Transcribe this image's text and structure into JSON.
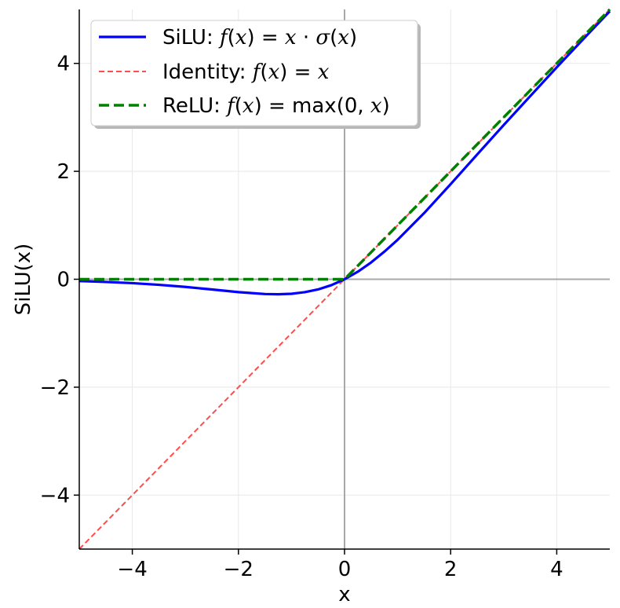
{
  "chart_data": {
    "type": "line",
    "title": "",
    "xlabel": "x",
    "ylabel": "SiLU(x)",
    "xlim": [
      -5,
      5
    ],
    "ylim": [
      -5,
      5
    ],
    "xticks": [
      -4,
      -2,
      0,
      2,
      4
    ],
    "yticks": [
      -4,
      -2,
      0,
      2,
      4
    ],
    "xtick_labels": [
      "−4",
      "−2",
      "0",
      "2",
      "4"
    ],
    "ytick_labels": [
      "−4",
      "−2",
      "0",
      "2",
      "4"
    ],
    "grid": true,
    "legend_position": "top-left",
    "series": [
      {
        "name": "SiLU: f(x) = x · σ(x)",
        "label_parts": [
          "SiLU: ",
          "f",
          "(",
          "x",
          ") = ",
          "x",
          " · ",
          "σ",
          "(",
          "x",
          ")"
        ],
        "color": "#0000ff",
        "style": "solid",
        "x": [
          -5,
          -4.5,
          -4,
          -3.5,
          -3,
          -2.5,
          -2,
          -1.5,
          -1.25,
          -1,
          -0.75,
          -0.5,
          -0.25,
          0,
          0.25,
          0.5,
          0.75,
          1,
          1.5,
          2,
          2.5,
          3,
          3.5,
          4,
          4.5,
          5
        ],
        "y": [
          -0.033,
          -0.05,
          -0.072,
          -0.103,
          -0.142,
          -0.189,
          -0.238,
          -0.274,
          -0.278,
          -0.269,
          -0.239,
          -0.189,
          -0.11,
          0,
          0.14,
          0.311,
          0.511,
          0.731,
          1.226,
          1.762,
          2.311,
          2.857,
          3.393,
          3.928,
          4.45,
          4.967
        ]
      },
      {
        "name": "Identity: f(x) = x",
        "label_parts": [
          "Identity: ",
          "f",
          "(",
          "x",
          ") = ",
          "x"
        ],
        "color": "#ff4d4d",
        "style": "dashed",
        "x": [
          -5,
          5
        ],
        "y": [
          -5,
          5
        ]
      },
      {
        "name": "ReLU: f(x) = max(0, x)",
        "label_parts": [
          "ReLU: ",
          "f",
          "(",
          "x",
          ") = max(0, ",
          "x",
          ")"
        ],
        "color": "#008000",
        "style": "dashed",
        "x": [
          -5,
          0,
          5
        ],
        "y": [
          0,
          0,
          5
        ]
      }
    ]
  }
}
